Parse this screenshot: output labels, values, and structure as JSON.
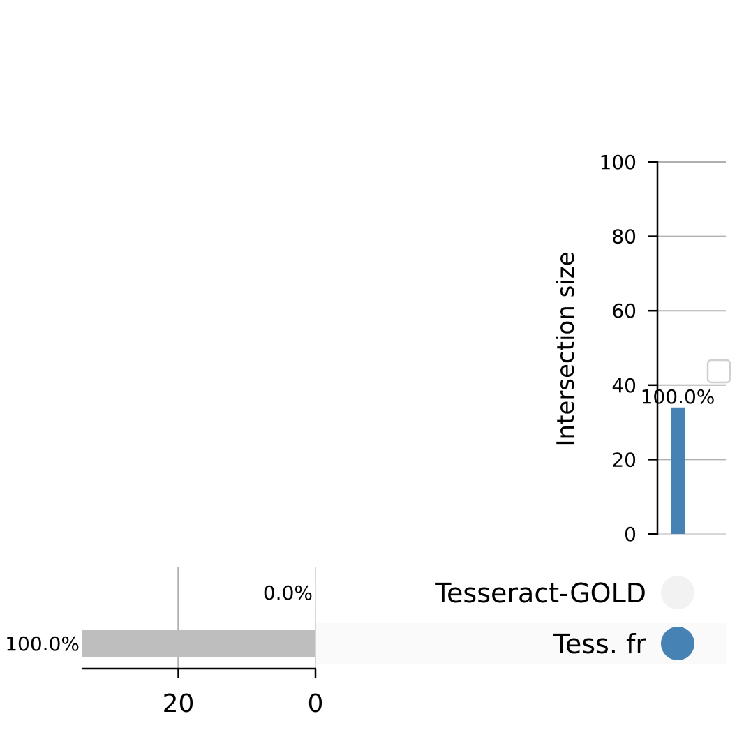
{
  "chart_data": {
    "type": "bar",
    "subtype": "upset",
    "intersections": [
      {
        "members": [
          "Tess. fr"
        ],
        "value": 34,
        "label": "100.0%",
        "color": "#4682b4"
      }
    ],
    "intersection_axis": {
      "ylabel": "Intersection size",
      "ylim": [
        0,
        100
      ],
      "ticks": [
        "0",
        "20",
        "40",
        "60",
        "80",
        "100"
      ],
      "grid": true
    },
    "sets": [
      {
        "name": "Tesseract-GOLD",
        "size": 0,
        "label": "0.0%",
        "active": false
      },
      {
        "name": "Tess. fr",
        "size": 34,
        "label": "100.0%",
        "active": true
      }
    ],
    "set_size_axis": {
      "xlim": [
        0,
        34
      ],
      "inverted": true,
      "ticks": [
        "20",
        "0"
      ],
      "grid": true
    },
    "colors": {
      "bar": "#4682b4",
      "set_bar": "#bebebe",
      "active_dot": "#4682b4",
      "inactive_dot": "#f2f2f2",
      "stripe": "#fafafa",
      "grid": "#b0b0b0"
    }
  }
}
